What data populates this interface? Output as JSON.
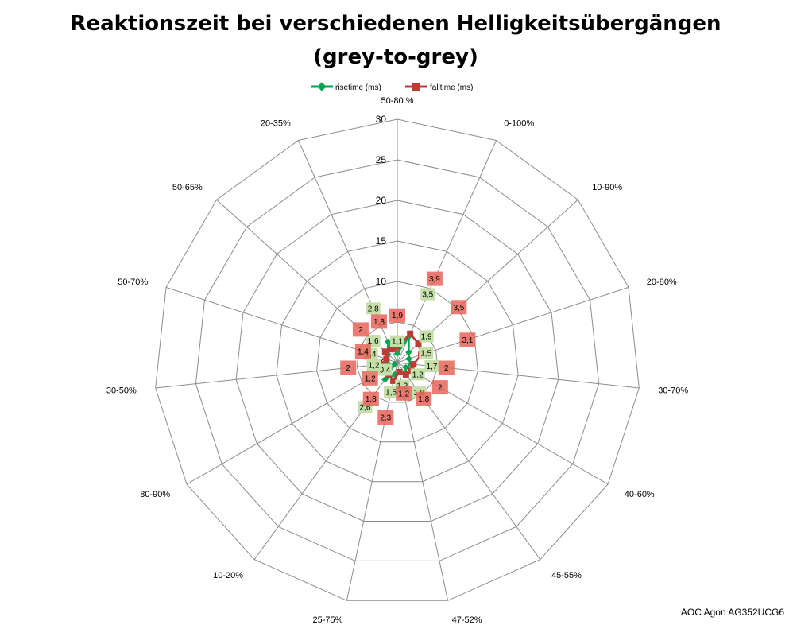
{
  "chart_data": {
    "type": "radar",
    "title_line1": "Reaktionszeit bei verschiedenen Helligkeitsübergängen",
    "title_line2": "(grey-to-grey)",
    "categories": [
      "50-80 %",
      "0-100%",
      "10-90%",
      "20-80%",
      "30-70%",
      "40-60%",
      "45-55%",
      "47-52%",
      "25-75%",
      "10-20%",
      "80-90%",
      "30-50%",
      "50-70%",
      "50-65%",
      "20-35%"
    ],
    "r_range": [
      0,
      30
    ],
    "r_ticks": [
      "0",
      "5",
      "10",
      "15",
      "20",
      "25",
      "30"
    ],
    "grid": true,
    "legend_position": "top",
    "series": [
      {
        "name": "risetime (ms)",
        "color": "#00A550",
        "label_bg": "#C4DFA8",
        "values": [
          1.1,
          3.5,
          1.9,
          1.5,
          1.7,
          1.2,
          1.8,
          1.2,
          1.5,
          2.6,
          0.4,
          1.2,
          1.4,
          1.6,
          2.8
        ],
        "labels": [
          "1,1",
          "3,5",
          "1,9",
          "1,5",
          "1,7",
          "1,2",
          "1,8",
          "1,2",
          "1,5",
          "2,6",
          "0,4",
          "1,2",
          "1,4",
          "1,6",
          "2,8"
        ]
      },
      {
        "name": "falltime (ms)",
        "color": "#BE3A35",
        "label_bg": "#E6655A",
        "values": [
          1.9,
          3.9,
          3.5,
          3.1,
          2,
          2,
          1.8,
          1.2,
          2.3,
          1.8,
          1.2,
          2,
          1.4,
          2,
          1.8
        ],
        "labels": [
          "1,9",
          "3,9",
          "3,5",
          "3,1",
          "2",
          "2",
          "1,8",
          "1,2",
          "2,3",
          "1,8",
          "1,2",
          "2",
          "1,4",
          "2",
          "1,8"
        ]
      }
    ]
  },
  "footer": "AOC Agon AG352UCG6"
}
